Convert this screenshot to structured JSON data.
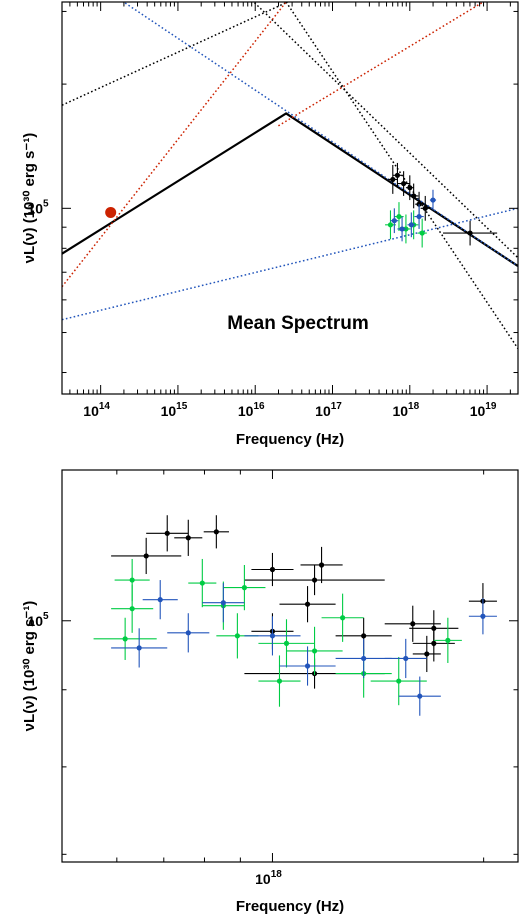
{
  "chart_data": [
    {
      "type": "scatter",
      "panel": "top",
      "xlabel": "Frequency (Hz)",
      "ylabel": "νL(ν) (10³⁰ erg s⁻¹)",
      "annotation": "Mean Spectrum",
      "x_scale": "log",
      "y_scale": "log",
      "xlim_log10": [
        13.5,
        19.4
      ],
      "ylim_log10": [
        4.55,
        5.5
      ],
      "x_ticks": [
        {
          "log": 14,
          "base": "10",
          "exp": "14"
        },
        {
          "log": 15,
          "base": "10",
          "exp": "15"
        },
        {
          "log": 16,
          "base": "10",
          "exp": "16"
        },
        {
          "log": 17,
          "base": "10",
          "exp": "17"
        },
        {
          "log": 18,
          "base": "10",
          "exp": "18"
        },
        {
          "log": 19,
          "base": "10",
          "exp": "19"
        }
      ],
      "y_ticks": [
        {
          "log": 5,
          "base": "10",
          "exp": "5"
        }
      ],
      "lines": [
        {
          "color": "#000000",
          "style": "solid",
          "width": 2.2,
          "points": [
            [
              13.5,
              4.89
            ],
            [
              16.4,
              5.23
            ],
            [
              19.4,
              4.86
            ]
          ]
        },
        {
          "color": "#000000",
          "style": "dotted",
          "width": 1.5,
          "points": [
            [
              13.5,
              5.95
            ],
            [
              19.4,
              4.88
            ]
          ]
        },
        {
          "color": "#000000",
          "style": "dotted",
          "width": 1.5,
          "points": [
            [
              16.4,
              5.5
            ],
            [
              19.4,
              4.66
            ]
          ]
        },
        {
          "color": "#000000",
          "style": "dotted",
          "width": 1.5,
          "points": [
            [
              13.5,
              5.25
            ],
            [
              16.42,
              5.5
            ]
          ]
        },
        {
          "color": "#cc2200",
          "style": "dotted",
          "width": 1.5,
          "points": [
            [
              13.5,
              4.81
            ],
            [
              16.4,
              5.5
            ]
          ]
        },
        {
          "color": "#cc2200",
          "style": "dotted",
          "width": 1.5,
          "points": [
            [
              16.3,
              5.2
            ],
            [
              18.95,
              5.5
            ]
          ]
        },
        {
          "color": "#2255bb",
          "style": "dotted",
          "width": 1.5,
          "points": [
            [
              13.5,
              5.6
            ],
            [
              19.4,
              4.86
            ]
          ]
        },
        {
          "color": "#2255bb",
          "style": "dotted",
          "width": 1.5,
          "points": [
            [
              13.5,
              4.73
            ],
            [
              19.4,
              5.0
            ]
          ]
        }
      ],
      "points": [
        {
          "x": 14.13,
          "y": 4.99,
          "color": "#cc2200",
          "xerr": 0.04,
          "yerr": 0.012,
          "size": 5.5
        },
        {
          "x": 17.78,
          "y": 5.07,
          "color": "#000000",
          "xerr": 0.06,
          "yerr": 0.035
        },
        {
          "x": 17.84,
          "y": 5.08,
          "color": "#000000",
          "xerr": 0.06,
          "yerr": 0.03
        },
        {
          "x": 17.92,
          "y": 5.06,
          "color": "#000000",
          "xerr": 0.08,
          "yerr": 0.03
        },
        {
          "x": 18.0,
          "y": 5.05,
          "color": "#000000",
          "xerr": 0.05,
          "yerr": 0.03
        },
        {
          "x": 18.05,
          "y": 5.03,
          "color": "#000000",
          "xerr": 0.06,
          "yerr": 0.03
        },
        {
          "x": 18.12,
          "y": 5.01,
          "color": "#000000",
          "xerr": 0.05,
          "yerr": 0.03
        },
        {
          "x": 18.2,
          "y": 5.0,
          "color": "#000000",
          "xerr": 0.06,
          "yerr": 0.03
        },
        {
          "x": 18.78,
          "y": 4.94,
          "color": "#000000",
          "xerr": 0.35,
          "yerr": 0.03
        },
        {
          "x": 17.75,
          "y": 4.96,
          "color": "#00cc44",
          "xerr": 0.07,
          "yerr": 0.035
        },
        {
          "x": 17.86,
          "y": 4.98,
          "color": "#00cc44",
          "xerr": 0.06,
          "yerr": 0.035
        },
        {
          "x": 17.95,
          "y": 4.95,
          "color": "#00cc44",
          "xerr": 0.06,
          "yerr": 0.035
        },
        {
          "x": 18.05,
          "y": 4.96,
          "color": "#00cc44",
          "xerr": 0.06,
          "yerr": 0.035
        },
        {
          "x": 18.16,
          "y": 4.94,
          "color": "#00cc44",
          "xerr": 0.06,
          "yerr": 0.035
        },
        {
          "x": 17.8,
          "y": 4.97,
          "color": "#2255bb",
          "xerr": 0.05,
          "yerr": 0.03
        },
        {
          "x": 17.9,
          "y": 4.95,
          "color": "#2255bb",
          "xerr": 0.06,
          "yerr": 0.03
        },
        {
          "x": 18.02,
          "y": 4.96,
          "color": "#2255bb",
          "xerr": 0.05,
          "yerr": 0.03
        },
        {
          "x": 18.12,
          "y": 4.98,
          "color": "#2255bb",
          "xerr": 0.06,
          "yerr": 0.03
        },
        {
          "x": 18.3,
          "y": 5.02,
          "color": "#2255bb",
          "xerr": 0.04,
          "yerr": 0.025
        }
      ]
    },
    {
      "type": "scatter",
      "panel": "bottom",
      "xlabel": "Frequency (Hz)",
      "ylabel": "νL(ν) (10³⁰ erg s⁻¹)",
      "x_scale": "log",
      "y_scale": "log",
      "xlim_log10": [
        17.7,
        18.35
      ],
      "ylim_log10": [
        4.84,
        5.1
      ],
      "x_ticks": [
        {
          "log": 18,
          "base": "10",
          "exp": "18"
        }
      ],
      "y_ticks": [
        {
          "log": 5,
          "base": "10",
          "exp": "5"
        }
      ],
      "points": [
        {
          "x": 17.85,
          "y": 5.058,
          "color": "#000000",
          "xerr": 0.03,
          "yerr": 0.012
        },
        {
          "x": 17.88,
          "y": 5.055,
          "color": "#000000",
          "xerr": 0.02,
          "yerr": 0.012
        },
        {
          "x": 17.92,
          "y": 5.059,
          "color": "#000000",
          "xerr": 0.018,
          "yerr": 0.011
        },
        {
          "x": 17.82,
          "y": 5.043,
          "color": "#000000",
          "xerr": 0.05,
          "yerr": 0.012
        },
        {
          "x": 18.0,
          "y": 5.034,
          "color": "#000000",
          "xerr": 0.03,
          "yerr": 0.011
        },
        {
          "x": 18.07,
          "y": 5.037,
          "color": "#000000",
          "xerr": 0.03,
          "yerr": 0.012
        },
        {
          "x": 18.06,
          "y": 5.027,
          "color": "#000000",
          "xerr": 0.1,
          "yerr": 0.01
        },
        {
          "x": 18.05,
          "y": 5.011,
          "color": "#000000",
          "xerr": 0.04,
          "yerr": 0.012
        },
        {
          "x": 18.13,
          "y": 4.99,
          "color": "#000000",
          "xerr": 0.04,
          "yerr": 0.012
        },
        {
          "x": 18.2,
          "y": 4.998,
          "color": "#000000",
          "xerr": 0.04,
          "yerr": 0.012
        },
        {
          "x": 18.23,
          "y": 4.985,
          "color": "#000000",
          "xerr": 0.03,
          "yerr": 0.012
        },
        {
          "x": 18.23,
          "y": 4.995,
          "color": "#000000",
          "xerr": 0.035,
          "yerr": 0.012
        },
        {
          "x": 18.0,
          "y": 4.993,
          "color": "#000000",
          "xerr": 0.03,
          "yerr": 0.012
        },
        {
          "x": 18.06,
          "y": 4.965,
          "color": "#000000",
          "xerr": 0.1,
          "yerr": 0.01
        },
        {
          "x": 18.22,
          "y": 4.978,
          "color": "#000000",
          "xerr": 0.02,
          "yerr": 0.012
        },
        {
          "x": 18.3,
          "y": 5.013,
          "color": "#000000",
          "xerr": 0.02,
          "yerr": 0.012
        },
        {
          "x": 17.8,
          "y": 5.027,
          "color": "#00cc44",
          "xerr": 0.025,
          "yerr": 0.014
        },
        {
          "x": 17.8,
          "y": 5.008,
          "color": "#00cc44",
          "xerr": 0.03,
          "yerr": 0.016
        },
        {
          "x": 17.79,
          "y": 4.988,
          "color": "#00cc44",
          "xerr": 0.045,
          "yerr": 0.014
        },
        {
          "x": 17.9,
          "y": 5.025,
          "color": "#00cc44",
          "xerr": 0.02,
          "yerr": 0.016
        },
        {
          "x": 17.93,
          "y": 5.01,
          "color": "#00cc44",
          "xerr": 0.03,
          "yerr": 0.016
        },
        {
          "x": 17.96,
          "y": 5.022,
          "color": "#00cc44",
          "xerr": 0.03,
          "yerr": 0.015
        },
        {
          "x": 17.95,
          "y": 4.99,
          "color": "#00cc44",
          "xerr": 0.03,
          "yerr": 0.015
        },
        {
          "x": 18.02,
          "y": 4.985,
          "color": "#00cc44",
          "xerr": 0.04,
          "yerr": 0.016
        },
        {
          "x": 18.1,
          "y": 5.002,
          "color": "#00cc44",
          "xerr": 0.03,
          "yerr": 0.016
        },
        {
          "x": 18.06,
          "y": 4.98,
          "color": "#00cc44",
          "xerr": 0.04,
          "yerr": 0.016
        },
        {
          "x": 18.13,
          "y": 4.965,
          "color": "#00cc44",
          "xerr": 0.04,
          "yerr": 0.016
        },
        {
          "x": 18.18,
          "y": 4.96,
          "color": "#00cc44",
          "xerr": 0.04,
          "yerr": 0.016
        },
        {
          "x": 18.25,
          "y": 4.987,
          "color": "#00cc44",
          "xerr": 0.02,
          "yerr": 0.015
        },
        {
          "x": 18.01,
          "y": 4.96,
          "color": "#00cc44",
          "xerr": 0.03,
          "yerr": 0.017
        },
        {
          "x": 17.81,
          "y": 4.982,
          "color": "#2255bb",
          "xerr": 0.04,
          "yerr": 0.013
        },
        {
          "x": 17.84,
          "y": 5.014,
          "color": "#2255bb",
          "xerr": 0.025,
          "yerr": 0.013
        },
        {
          "x": 17.88,
          "y": 4.992,
          "color": "#2255bb",
          "xerr": 0.03,
          "yerr": 0.013
        },
        {
          "x": 17.93,
          "y": 5.012,
          "color": "#2255bb",
          "xerr": 0.03,
          "yerr": 0.013
        },
        {
          "x": 18.0,
          "y": 4.99,
          "color": "#2255bb",
          "xerr": 0.04,
          "yerr": 0.013
        },
        {
          "x": 18.05,
          "y": 4.97,
          "color": "#2255bb",
          "xerr": 0.04,
          "yerr": 0.013
        },
        {
          "x": 18.13,
          "y": 4.975,
          "color": "#2255bb",
          "xerr": 0.04,
          "yerr": 0.013
        },
        {
          "x": 18.19,
          "y": 4.975,
          "color": "#2255bb",
          "xerr": 0.03,
          "yerr": 0.013
        },
        {
          "x": 18.21,
          "y": 4.95,
          "color": "#2255bb",
          "xerr": 0.03,
          "yerr": 0.013
        },
        {
          "x": 18.3,
          "y": 5.003,
          "color": "#2255bb",
          "xerr": 0.02,
          "yerr": 0.012
        }
      ]
    }
  ]
}
